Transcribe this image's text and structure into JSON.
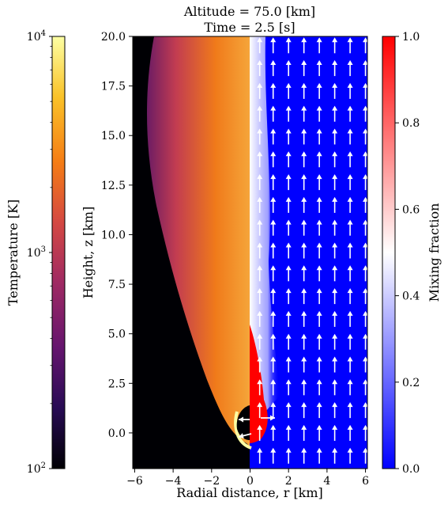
{
  "title": {
    "line1": "Altitude =  75.0 [km]",
    "line2": "Time =  2.5 [s]"
  },
  "colors": {
    "mixing_low": "#0000ff",
    "mixing_mid": "#ffffff",
    "mixing_high": "#ff0000",
    "temperature_scale": [
      "#000004",
      "#280b54",
      "#65156e",
      "#9f2a63",
      "#d44842",
      "#f57d15",
      "#fac228",
      "#fcffa4"
    ],
    "arrow": "#ffffff"
  },
  "chart_data": [
    {
      "type": "heatmap",
      "panel": "main",
      "xlabel": "Radial distance, r [km]",
      "ylabel": "Height, z [km]",
      "xlim": [
        -6.1,
        6.1
      ],
      "ylim": [
        -1.8,
        20.0
      ],
      "xticks": [
        -6,
        -4,
        -2,
        0,
        2,
        4,
        6
      ],
      "xtick_labels": [
        "−6",
        "−4",
        "−2",
        "0",
        "2",
        "4",
        "6"
      ],
      "yticks": [
        0.0,
        2.5,
        5.0,
        7.5,
        10.0,
        12.5,
        15.0,
        17.5,
        20.0
      ],
      "ytick_labels": [
        "0.0",
        "2.5",
        "5.0",
        "7.5",
        "10.0",
        "12.5",
        "15.0",
        "17.5",
        "20.0"
      ],
      "left_half": "temperature (log scale)",
      "right_half": "mixing fraction with velocity arrows",
      "velocity_arrow_columns_r": [
        0.5,
        1.2,
        2.0,
        2.8,
        3.6,
        4.4,
        5.2,
        6.0
      ],
      "flow_direction": "upward"
    },
    {
      "type": "colorbar",
      "panel": "temperature",
      "label": "Temperature [K]",
      "scale": "log",
      "range": [
        100,
        10000
      ],
      "ticks": [
        100,
        1000,
        10000
      ],
      "tick_labels": [
        [
          "10",
          "2"
        ],
        [
          "10",
          "3"
        ],
        [
          "10",
          "4"
        ]
      ],
      "colormap": "inferno"
    },
    {
      "type": "colorbar",
      "panel": "mixing",
      "label": "Mixing fraction",
      "scale": "linear",
      "range": [
        0.0,
        1.0
      ],
      "ticks": [
        0.0,
        0.2,
        0.4,
        0.6,
        0.8,
        1.0
      ],
      "tick_labels": [
        "0.0",
        "0.2",
        "0.4",
        "0.6",
        "0.8",
        "1.0"
      ],
      "colormap": "bwr"
    }
  ]
}
